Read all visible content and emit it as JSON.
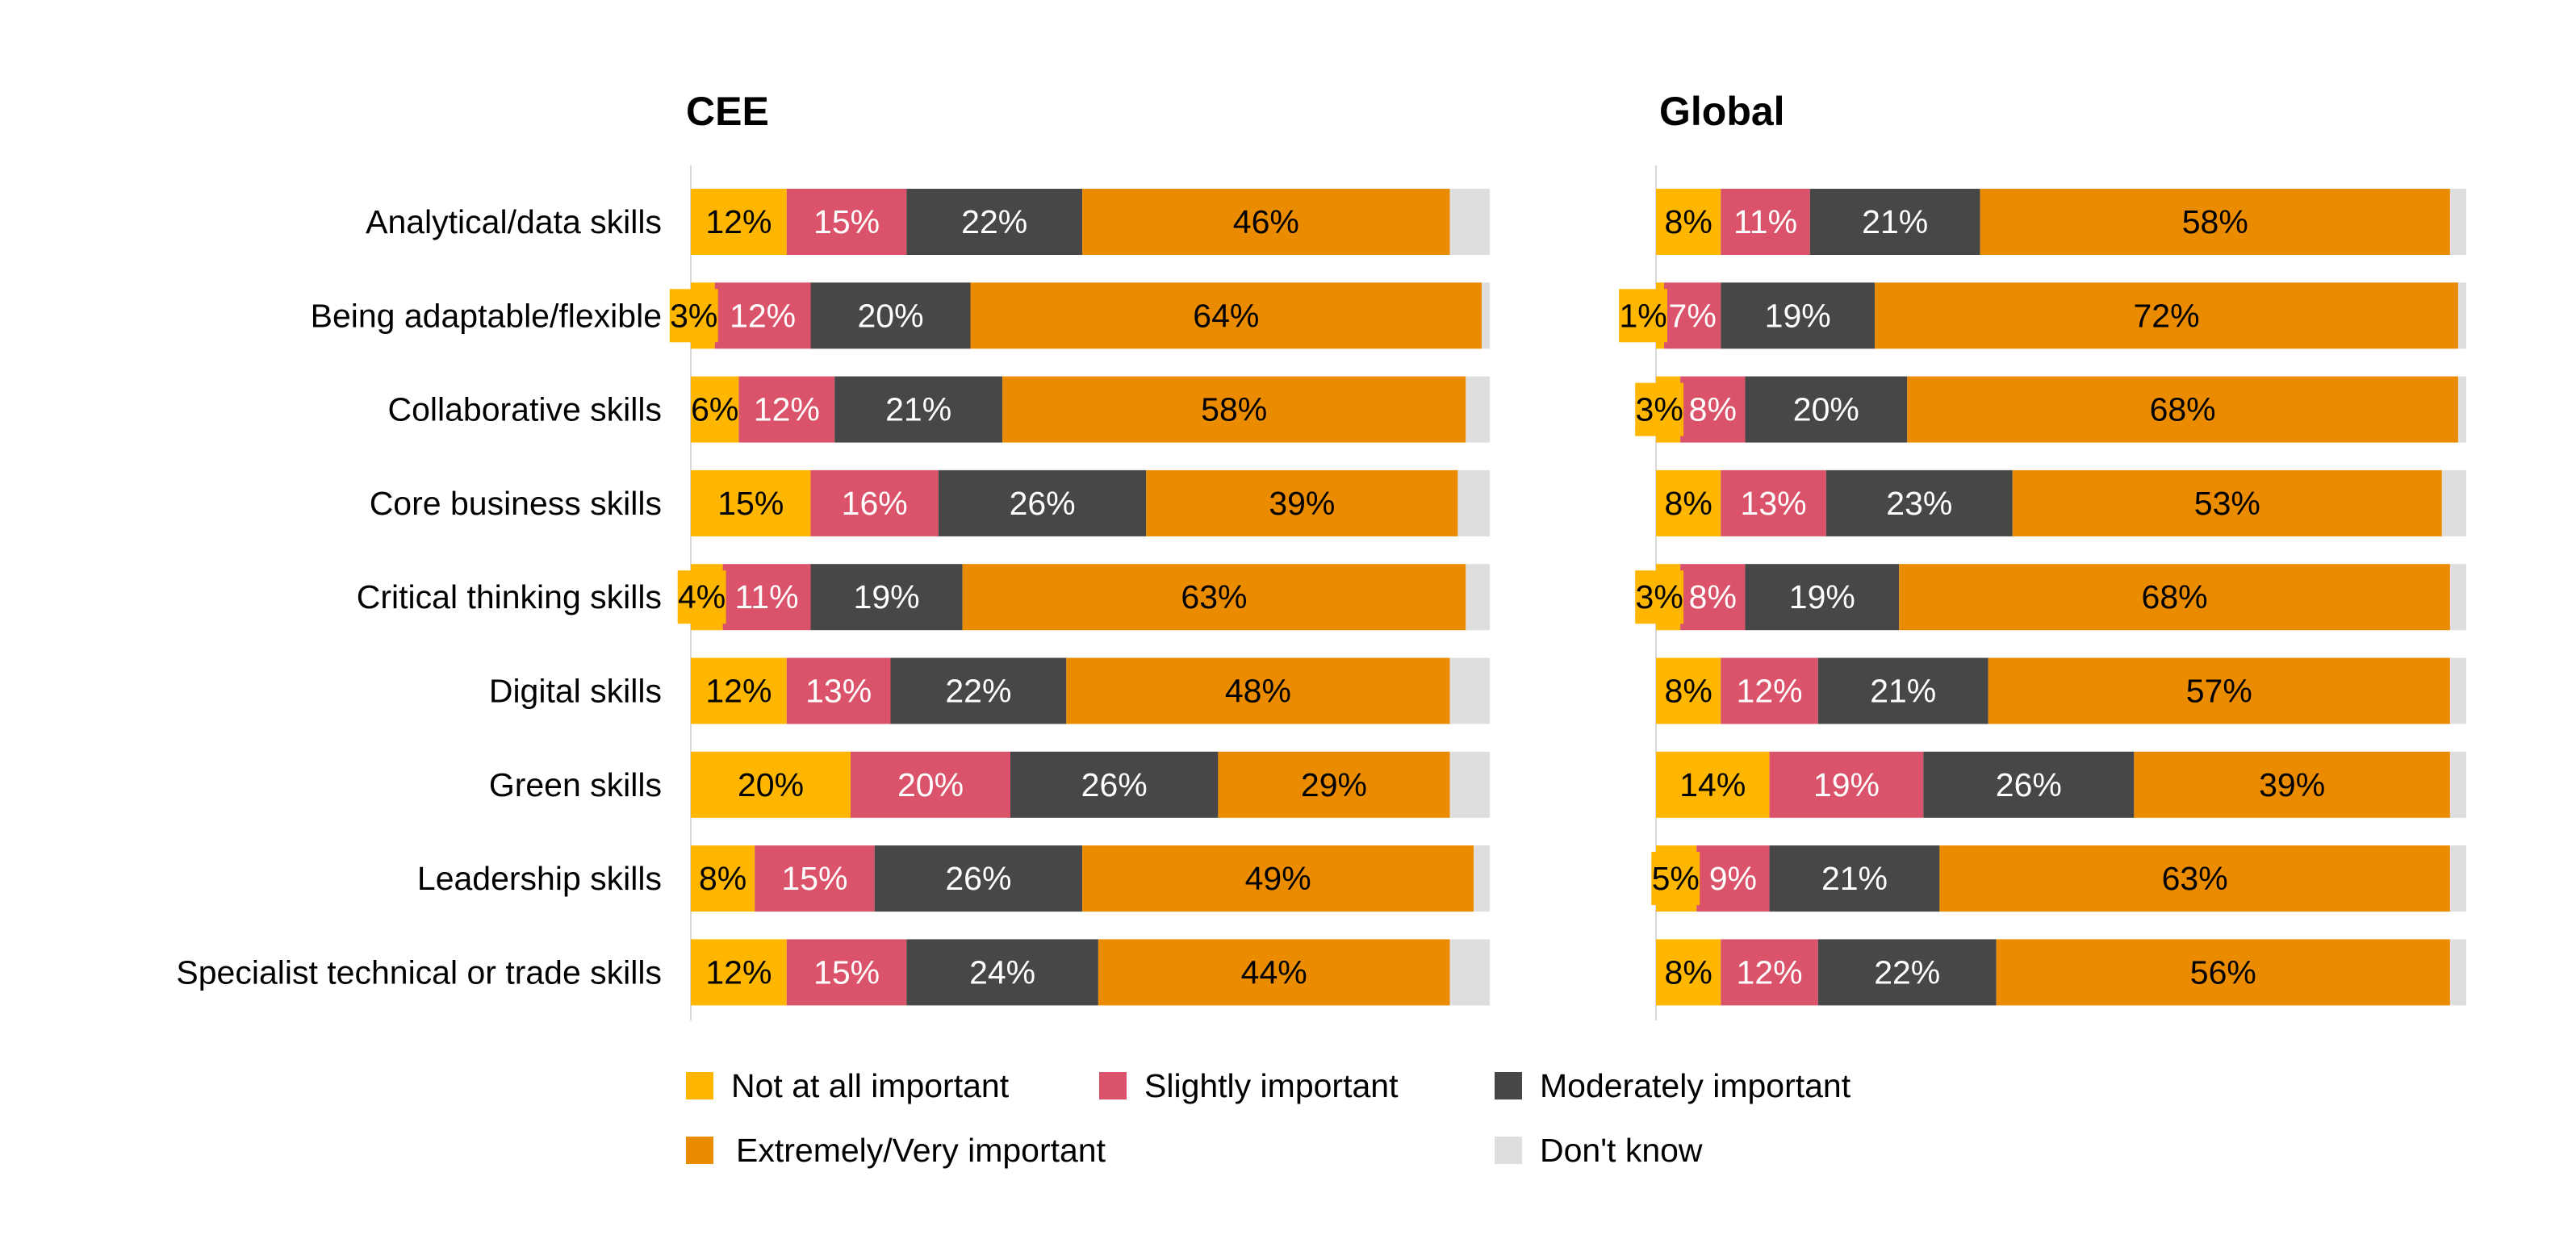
{
  "chart_data": [
    {
      "type": "bar",
      "orientation": "horizontal-stacked-100",
      "title": "CEE",
      "categories": [
        "Analytical/data skills",
        "Being adaptable/flexible",
        "Collaborative skills",
        "Core business skills",
        "Critical thinking skills",
        "Digital skills",
        "Green skills",
        "Leadership skills",
        "Specialist technical or trade skills"
      ],
      "series": [
        {
          "name": "Not at all important",
          "color": "#FFB600",
          "values": [
            12,
            3,
            6,
            15,
            4,
            12,
            20,
            8,
            12
          ]
        },
        {
          "name": "Slightly important",
          "color": "#DB536A",
          "values": [
            15,
            12,
            12,
            16,
            11,
            13,
            20,
            15,
            15
          ]
        },
        {
          "name": "Moderately important",
          "color": "#474747",
          "values": [
            22,
            20,
            21,
            26,
            19,
            22,
            26,
            26,
            24
          ]
        },
        {
          "name": "Extremely/Very important",
          "color": "#EB8C00",
          "values": [
            46,
            64,
            58,
            39,
            63,
            48,
            29,
            49,
            44
          ]
        },
        {
          "name": "Don't know",
          "color": "#DEDEDE",
          "values": [
            5,
            1,
            3,
            4,
            3,
            5,
            5,
            2,
            5
          ]
        }
      ],
      "xlim": [
        0,
        100
      ]
    },
    {
      "type": "bar",
      "orientation": "horizontal-stacked-100",
      "title": "Global",
      "categories": [
        "Analytical/data skills",
        "Being adaptable/flexible",
        "Collaborative skills",
        "Core business skills",
        "Critical thinking skills",
        "Digital skills",
        "Green skills",
        "Leadership skills",
        "Specialist technical or trade skills"
      ],
      "series": [
        {
          "name": "Not at all important",
          "color": "#FFB600",
          "values": [
            8,
            1,
            3,
            8,
            3,
            8,
            14,
            5,
            8
          ]
        },
        {
          "name": "Slightly important",
          "color": "#DB536A",
          "values": [
            11,
            7,
            8,
            13,
            8,
            12,
            19,
            9,
            12
          ]
        },
        {
          "name": "Moderately important",
          "color": "#474747",
          "values": [
            21,
            19,
            20,
            23,
            19,
            21,
            26,
            21,
            22
          ]
        },
        {
          "name": "Extremely/Very important",
          "color": "#EB8C00",
          "values": [
            58,
            72,
            68,
            53,
            68,
            57,
            39,
            63,
            56
          ]
        },
        {
          "name": "Don't know",
          "color": "#DEDEDE",
          "values": [
            2,
            1,
            1,
            3,
            2,
            2,
            2,
            2,
            2
          ]
        }
      ],
      "xlim": [
        0,
        100
      ]
    }
  ],
  "legend": {
    "placement": "bottom",
    "items": [
      "Not at all important",
      "Slightly important",
      "Moderately important",
      "Extremely/Very important",
      "Don't know"
    ]
  }
}
